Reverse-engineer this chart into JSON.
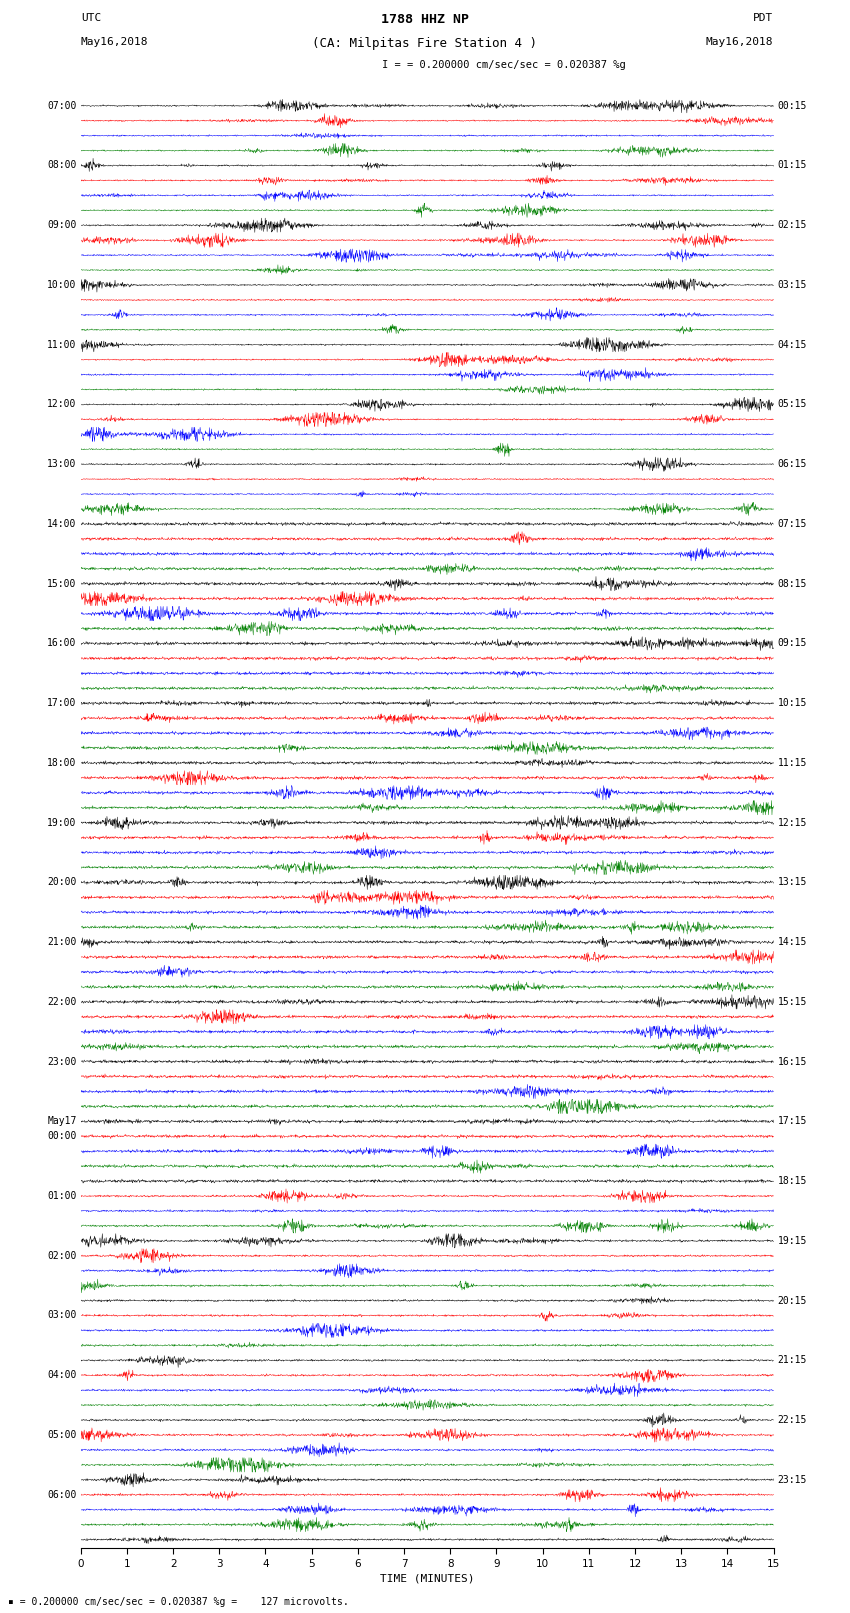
{
  "title_line1": "1788 HHZ NP",
  "title_line2": "(CA: Milpitas Fire Station 4 )",
  "scale_text": "= 0.200000 cm/sec/sec = 0.020387 %g",
  "bottom_scale_text": "= 0.200000 cm/sec/sec = 0.020387 %g =    127 microvolts.",
  "utc_label": "UTC",
  "utc_date": "May16,2018",
  "pdt_label": "PDT",
  "pdt_date": "May16,2018",
  "xlabel": "TIME (MINUTES)",
  "left_labels": [
    [
      "07:00",
      0
    ],
    [
      "08:00",
      4
    ],
    [
      "09:00",
      8
    ],
    [
      "10:00",
      12
    ],
    [
      "11:00",
      16
    ],
    [
      "12:00",
      20
    ],
    [
      "13:00",
      24
    ],
    [
      "14:00",
      28
    ],
    [
      "15:00",
      32
    ],
    [
      "16:00",
      36
    ],
    [
      "17:00",
      40
    ],
    [
      "18:00",
      44
    ],
    [
      "19:00",
      48
    ],
    [
      "20:00",
      52
    ],
    [
      "21:00",
      56
    ],
    [
      "22:00",
      60
    ],
    [
      "23:00",
      64
    ],
    [
      "May17",
      68
    ],
    [
      "00:00",
      69
    ],
    [
      "01:00",
      73
    ],
    [
      "02:00",
      77
    ],
    [
      "03:00",
      81
    ],
    [
      "04:00",
      85
    ],
    [
      "05:00",
      89
    ],
    [
      "06:00",
      93
    ]
  ],
  "right_labels": [
    [
      "00:15",
      0
    ],
    [
      "01:15",
      4
    ],
    [
      "02:15",
      8
    ],
    [
      "03:15",
      12
    ],
    [
      "04:15",
      16
    ],
    [
      "05:15",
      20
    ],
    [
      "06:15",
      24
    ],
    [
      "07:15",
      28
    ],
    [
      "08:15",
      32
    ],
    [
      "09:15",
      36
    ],
    [
      "10:15",
      40
    ],
    [
      "11:15",
      44
    ],
    [
      "12:15",
      48
    ],
    [
      "13:15",
      52
    ],
    [
      "14:15",
      56
    ],
    [
      "15:15",
      60
    ],
    [
      "16:15",
      64
    ],
    [
      "17:15",
      68
    ],
    [
      "18:15",
      72
    ],
    [
      "19:15",
      76
    ],
    [
      "20:15",
      80
    ],
    [
      "21:15",
      84
    ],
    [
      "22:15",
      88
    ],
    [
      "23:15",
      92
    ]
  ],
  "n_rows": 97,
  "n_points": 1800,
  "colors": [
    "black",
    "red",
    "blue",
    "green"
  ],
  "x_min": 0,
  "x_max": 15,
  "bg_color": "white",
  "seed": 42
}
